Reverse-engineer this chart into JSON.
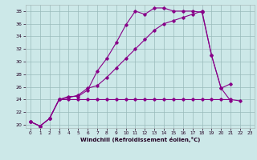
{
  "xlabel": "Windchill (Refroidissement éolien,°C)",
  "bg_color": "#cce8e8",
  "line_color": "#880088",
  "grid_color": "#99bbbb",
  "xlim": [
    -0.5,
    23.5
  ],
  "ylim": [
    19.5,
    39.0
  ],
  "xticks": [
    0,
    1,
    2,
    3,
    4,
    5,
    6,
    7,
    8,
    9,
    10,
    11,
    12,
    13,
    14,
    15,
    16,
    17,
    18,
    19,
    20,
    21,
    22,
    23
  ],
  "yticks": [
    20,
    22,
    24,
    26,
    28,
    30,
    32,
    34,
    36,
    38
  ],
  "line1_x": [
    0,
    1,
    2,
    3,
    4,
    5,
    6,
    7,
    8,
    9,
    10,
    11,
    12,
    13,
    14,
    15,
    16,
    17,
    18,
    19,
    20,
    21
  ],
  "line1_y": [
    20.5,
    19.8,
    21.0,
    24.0,
    24.5,
    24.5,
    25.5,
    28.5,
    30.5,
    33.0,
    35.8,
    38.0,
    37.5,
    38.5,
    38.5,
    38.0,
    38.0,
    38.0,
    37.8,
    31.0,
    25.8,
    23.8
  ],
  "line2_x": [
    0,
    1,
    2,
    3,
    4,
    5,
    6,
    7,
    8,
    9,
    10,
    11,
    12,
    13,
    14,
    15,
    16,
    17,
    18,
    19,
    20,
    21
  ],
  "line2_y": [
    20.5,
    19.8,
    21.0,
    24.0,
    24.3,
    24.7,
    25.8,
    26.2,
    27.5,
    29.0,
    30.5,
    32.0,
    33.5,
    35.0,
    36.0,
    36.5,
    37.0,
    37.5,
    38.0,
    31.0,
    25.8,
    26.5
  ],
  "line3_x": [
    0,
    1,
    2,
    3,
    4,
    5,
    6,
    7,
    8,
    9,
    10,
    11,
    12,
    13,
    14,
    15,
    16,
    17,
    18,
    19,
    20,
    21,
    22
  ],
  "line3_y": [
    20.5,
    19.8,
    21.0,
    24.0,
    24.0,
    24.0,
    24.0,
    24.0,
    24.0,
    24.0,
    24.0,
    24.0,
    24.0,
    24.0,
    24.0,
    24.0,
    24.0,
    24.0,
    24.0,
    24.0,
    24.0,
    24.0,
    23.8
  ]
}
